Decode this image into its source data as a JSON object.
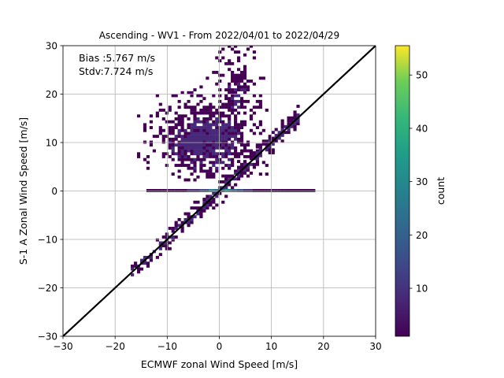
{
  "chart_data": {
    "type": "heatmap",
    "title": "Ascending - WV1 - From 2022/04/01 to 2022/04/29",
    "xlabel": "ECMWF zonal Wind Speed [m/s]",
    "ylabel": "S-1 A Zonal Wind Speed [m/s]",
    "xlim": [
      -30,
      30
    ],
    "ylim": [
      -30,
      30
    ],
    "x_ticks": [
      -30,
      -20,
      -10,
      0,
      10,
      20,
      30
    ],
    "y_ticks": [
      -30,
      -20,
      -10,
      0,
      10,
      20,
      30
    ],
    "x_tick_labels": [
      "−30",
      "−20",
      "−10",
      "0",
      "10",
      "20",
      "30"
    ],
    "y_tick_labels": [
      "−30",
      "−20",
      "−10",
      "0",
      "10",
      "20",
      "30"
    ],
    "grid": true,
    "annotations": [
      "Bias :5.767 m/s",
      "Stdv:7.724 m/s"
    ],
    "reference_line": {
      "type": "identity",
      "from": [
        -30,
        -30
      ],
      "to": [
        30,
        30
      ],
      "color": "#000000"
    },
    "colorbar": {
      "label": "count",
      "range": [
        1,
        55.5
      ],
      "ticks": [
        10,
        20,
        30,
        40,
        50
      ],
      "tick_labels": [
        "10",
        "20",
        "30",
        "40",
        "50"
      ],
      "colormap": "viridis"
    },
    "density_regions": [
      {
        "description": "upper cloud",
        "x_range": [
          -17,
          18
        ],
        "y_range": [
          2,
          30
        ],
        "peak_count": 6
      },
      {
        "description": "y=0 strip",
        "x_range": [
          -14,
          18
        ],
        "y_value": 0,
        "peak_count": 33
      },
      {
        "description": "diagonal band",
        "x_range": [
          -17,
          15
        ],
        "along": "y=x",
        "peak_count": 8
      }
    ]
  }
}
